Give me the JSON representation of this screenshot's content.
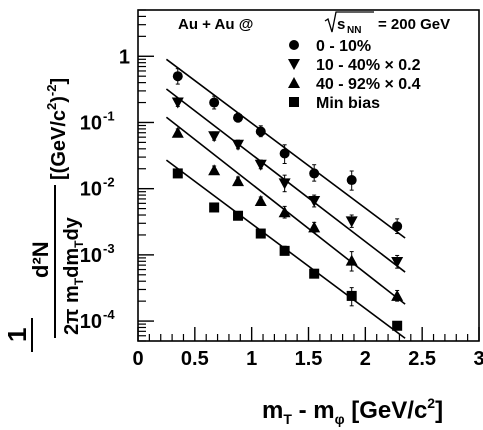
{
  "chart_data": {
    "type": "scatter",
    "title": {
      "system": "Au + Au @",
      "sqrt_label": "s",
      "sqrt_sub": "NN",
      "energy": "= 200 GeV"
    },
    "xlabel": {
      "main": "m",
      "sub1": "T",
      "mid": " - m",
      "sub2": "φ",
      "unit": " [GeV/c",
      "unit_sup": "2",
      "unit_end": "]"
    },
    "ylabel": {
      "frac1_num": "1",
      "frac2_num": "d²N",
      "den": "2π m",
      "den_sub": "T",
      "den_rest": "dm",
      "den_sub2": "T",
      "den_end": "dy",
      "unit": "[(GeV/c",
      "unit_sup": "2",
      "unit_end": ")",
      "unit_sup2": "-2",
      "unit_close": "]"
    },
    "xlim": [
      0,
      3
    ],
    "ylim": [
      5e-05,
      5
    ],
    "yscale": "log",
    "x_ticks": [
      "0",
      "0.5",
      "1",
      "1.5",
      "2",
      "2.5",
      "3"
    ],
    "y_ticks": [
      {
        "base": "1",
        "exp": ""
      },
      {
        "base": "10",
        "exp": "-1"
      },
      {
        "base": "10",
        "exp": "-2"
      },
      {
        "base": "10",
        "exp": "-3"
      },
      {
        "base": "10",
        "exp": "-4"
      }
    ],
    "legend_position": "top-right",
    "series": [
      {
        "name": "0 - 10%",
        "marker": "circle",
        "x": [
          0.35,
          0.67,
          0.88,
          1.08,
          1.29,
          1.55,
          1.88,
          2.28
        ],
        "y": [
          0.5,
          0.2,
          0.118,
          0.073,
          0.034,
          0.017,
          0.0135,
          0.0027
        ],
        "err_up": [
          0.15,
          0.05,
          0.02,
          0.016,
          0.012,
          0.006,
          0.005,
          0.0008
        ],
        "err_down": [
          0.12,
          0.04,
          0.015,
          0.012,
          0.01,
          0.004,
          0.004,
          0.0006
        ],
        "fit": [
          [
            0.25,
            0.9
          ],
          [
            2.35,
            0.0018
          ]
        ]
      },
      {
        "name": "10 - 40% ",
        "name_suffix": "× 0.2",
        "marker": "triangle-down",
        "x": [
          0.35,
          0.67,
          0.88,
          1.08,
          1.29,
          1.55,
          1.88,
          2.28
        ],
        "y": [
          0.2,
          0.062,
          0.046,
          0.023,
          0.012,
          0.0065,
          0.0032,
          0.00078
        ],
        "err_up": [
          0.03,
          0.01,
          0.008,
          0.004,
          0.004,
          0.0015,
          0.0008,
          0.0002
        ],
        "err_down": [
          0.025,
          0.008,
          0.006,
          0.003,
          0.003,
          0.0012,
          0.0006,
          0.00015
        ],
        "fit": [
          [
            0.25,
            0.32
          ],
          [
            2.35,
            0.00055
          ]
        ]
      },
      {
        "name": "40 - 92% ",
        "name_suffix": "× 0.4",
        "marker": "triangle-up",
        "x": [
          0.35,
          0.67,
          0.88,
          1.08,
          1.29,
          1.55,
          1.88,
          2.28
        ],
        "y": [
          0.07,
          0.019,
          0.013,
          0.0065,
          0.0044,
          0.0026,
          0.00082,
          0.00024
        ],
        "err_up": [
          0.01,
          0.003,
          0.002,
          0.001,
          0.001,
          0.0005,
          0.0003,
          5e-05
        ],
        "err_down": [
          0.008,
          0.0025,
          0.0015,
          0.0008,
          0.0008,
          0.0004,
          0.00025,
          4e-05
        ],
        "fit": [
          [
            0.25,
            0.12
          ],
          [
            2.35,
            0.00018
          ]
        ]
      },
      {
        "name": "Min bias",
        "marker": "square",
        "x": [
          0.35,
          0.67,
          0.88,
          1.08,
          1.29,
          1.55,
          1.88,
          2.28
        ],
        "y": [
          0.017,
          0.0052,
          0.0039,
          0.0021,
          0.00115,
          0.00052,
          0.00024,
          8.5e-05
        ],
        "err_up": [
          0.002,
          0.0006,
          0.0005,
          0.0003,
          0.0002,
          8e-05,
          8e-05,
          1e-05
        ],
        "err_down": [
          0.0015,
          0.0005,
          0.0004,
          0.00025,
          0.00015,
          6e-05,
          7e-05,
          1e-05
        ],
        "fit": [
          [
            0.25,
            0.027
          ],
          [
            2.35,
            5.5e-05
          ]
        ]
      }
    ]
  }
}
